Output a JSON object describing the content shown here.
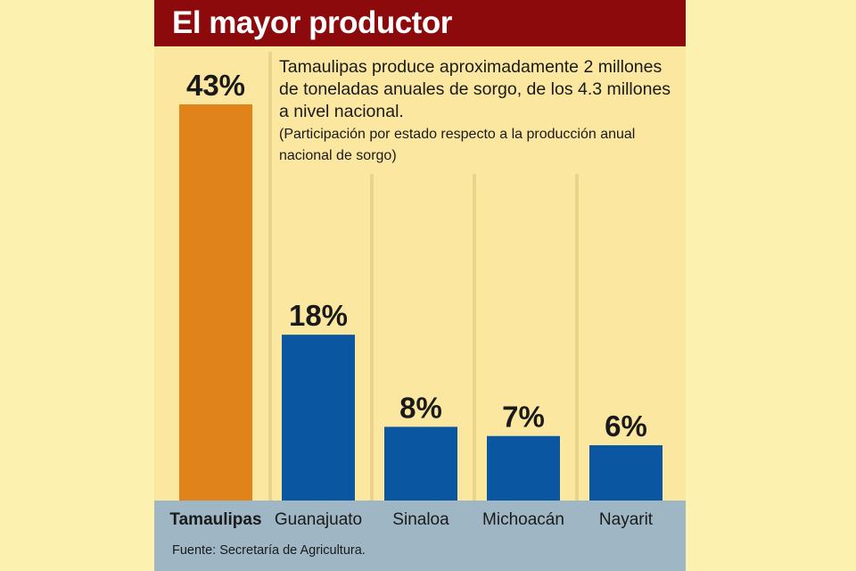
{
  "title": "El mayor productor",
  "description": "Tamaulipas produce aproximadamente 2 millones de toneladas anuales de sorgo, de los 4.3 millones a nivel nacional.",
  "note": "(Participación por estado respecto a la producción anual nacional de sorgo)",
  "source": "Fuente: Secretaría de Agricultura.",
  "colors": {
    "title_bar": "#8c0a0c",
    "background": "#fbe7a0",
    "highlight_bar": "#e0831a",
    "bar": "#0b56a0",
    "footer_band": "#9fb7c4"
  },
  "chart_data": {
    "type": "bar",
    "title": "El mayor productor",
    "xlabel": "",
    "ylabel": "",
    "categories": [
      "Tamaulipas",
      "Guanajuato",
      "Sinaloa",
      "Michoacán",
      "Nayarit"
    ],
    "values": [
      43,
      18,
      8,
      7,
      6
    ],
    "data_labels": [
      "43%",
      "18%",
      "8%",
      "7%",
      "6%"
    ],
    "highlight": "Tamaulipas",
    "ylim": [
      0,
      43
    ],
    "grid": false,
    "legend": "none"
  }
}
